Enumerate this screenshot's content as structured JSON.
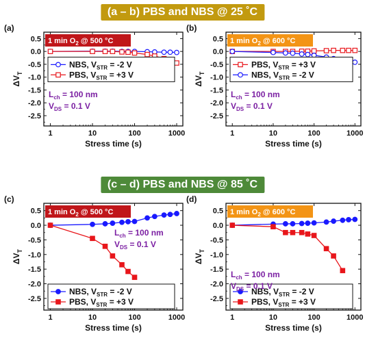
{
  "titles": {
    "top": "(a – b) PBS and NBS @ 25 ˚C",
    "bottom": "(c – d) PBS and NBS @ 85 ˚C"
  },
  "colors": {
    "nbs": "#1a1aff",
    "pbs": "#e8161b",
    "tag500": "#c0161a",
    "tag600": "#f39415",
    "annot": "#7b1fa2"
  },
  "chart_data": [
    {
      "panel": "(a)",
      "type": "line",
      "xscale": "log",
      "xlim": [
        0.7,
        1400
      ],
      "ylim": [
        -2.9,
        0.75
      ],
      "xlabel": "Stress time (s)",
      "ylabel": "ΔV_T",
      "xticks": [
        "1",
        "10",
        "100",
        "1000"
      ],
      "yticks": [
        "0.5",
        "0.0",
        "-0.5",
        "-1.0",
        "-1.5",
        "-2.0",
        "-2.5"
      ],
      "tag": {
        "main": "1 min O",
        "sub": "2",
        "rest": " @ 500 ",
        "unit": "°C",
        "color": "tag500"
      },
      "annot": {
        "l": "L",
        "lsub": "ch",
        "lval": " = 100 nm",
        "v": "V",
        "vsub": "DS",
        "vval": " = 0.1 V",
        "pos": "low"
      },
      "legend_pos": "mid",
      "marker": "hollow",
      "series": [
        {
          "name_main": "NBS, V",
          "name_sub": "STR",
          "name_val": " = -2 V",
          "color": "nbs",
          "shape": "circle",
          "x": [
            1,
            10,
            20,
            30,
            50,
            70,
            100,
            200,
            300,
            500,
            700,
            1000
          ],
          "values": [
            0,
            0.01,
            0.01,
            0.01,
            0,
            0,
            0,
            -0.01,
            -0.02,
            -0.03,
            -0.03,
            -0.04
          ]
        },
        {
          "name_main": "PBS, V",
          "name_sub": "STR",
          "name_val": " = +3 V",
          "color": "pbs",
          "shape": "square",
          "x": [
            1,
            10,
            20,
            30,
            50,
            70,
            100,
            200,
            300,
            500,
            700,
            1000
          ],
          "values": [
            0,
            0,
            0,
            0,
            -0.02,
            -0.03,
            -0.06,
            -0.12,
            -0.18,
            -0.28,
            -0.38,
            -0.45
          ]
        }
      ]
    },
    {
      "panel": "(b)",
      "type": "line",
      "xscale": "log",
      "xlim": [
        0.7,
        1400
      ],
      "ylim": [
        -2.9,
        0.75
      ],
      "xlabel": "Stress time (s)",
      "ylabel": "ΔV_T",
      "xticks": [
        "1",
        "10",
        "100",
        "1000"
      ],
      "yticks": [
        "0.5",
        "0.0",
        "-0.5",
        "-1.0",
        "-1.5",
        "-2.0",
        "-2.5"
      ],
      "tag": {
        "main": "1 min O",
        "sub": "2",
        "rest": " @ 600 ",
        "unit": "°C",
        "color": "tag600"
      },
      "annot": {
        "l": "L",
        "lsub": "ch",
        "lval": " = 100 nm",
        "v": "V",
        "vsub": "DS",
        "vval": " = 0.1 V",
        "pos": "low"
      },
      "legend_pos": "mid",
      "marker": "hollow",
      "series": [
        {
          "name_main": "PBS, V",
          "name_sub": "STR",
          "name_val": " = +3 V",
          "color": "pbs",
          "shape": "square",
          "x": [
            1,
            10,
            20,
            30,
            50,
            70,
            100,
            200,
            300,
            500,
            700,
            1000
          ],
          "values": [
            0,
            0,
            0,
            0,
            0.01,
            0.01,
            0.02,
            0.03,
            0.04,
            0.04,
            0.04,
            0.04
          ]
        },
        {
          "name_main": "NBS, V",
          "name_sub": "STR",
          "name_val": " = -2 V",
          "color": "nbs",
          "shape": "circle",
          "x": [
            1,
            10,
            20,
            30,
            50,
            70,
            100,
            200,
            300,
            500,
            700,
            1000
          ],
          "values": [
            0,
            -0.04,
            -0.06,
            -0.07,
            -0.1,
            -0.12,
            -0.15,
            -0.22,
            -0.28,
            -0.34,
            -0.38,
            -0.42
          ]
        }
      ]
    },
    {
      "panel": "(c)",
      "type": "line",
      "xscale": "log",
      "xlim": [
        0.7,
        1400
      ],
      "ylim": [
        -2.9,
        0.75
      ],
      "xlabel": "Stress time (s)",
      "ylabel": "ΔV_T",
      "xticks": [
        "1",
        "10",
        "100",
        "1000"
      ],
      "yticks": [
        "0.5",
        "0.0",
        "-0.5",
        "-1.0",
        "-1.5",
        "-2.0",
        "-2.5"
      ],
      "tag": {
        "main": "1 min O",
        "sub": "2",
        "rest": " @ 500 ",
        "unit": "°C",
        "color": "tag500"
      },
      "annot": {
        "l": "L",
        "lsub": "ch",
        "lval": " = 100 nm",
        "v": "V",
        "vsub": "DS",
        "vval": " = 0.1 V",
        "pos": "high"
      },
      "legend_pos": "bottom",
      "marker": "filled",
      "series": [
        {
          "name_main": "NBS, V",
          "name_sub": "STR",
          "name_val": " = -2 V",
          "color": "nbs",
          "shape": "circle",
          "x": [
            1,
            10,
            20,
            30,
            50,
            70,
            100,
            200,
            300,
            500,
            700,
            1000
          ],
          "values": [
            0,
            0.03,
            0.05,
            0.07,
            0.1,
            0.12,
            0.13,
            0.25,
            0.3,
            0.35,
            0.37,
            0.4
          ]
        },
        {
          "name_main": "PBS, V",
          "name_sub": "STR",
          "name_val": " = +3 V",
          "color": "pbs",
          "shape": "square",
          "x": [
            1,
            10,
            20,
            30,
            50,
            70,
            100
          ],
          "values": [
            0,
            -0.45,
            -0.72,
            -1.05,
            -1.35,
            -1.58,
            -1.78
          ]
        }
      ]
    },
    {
      "panel": "(d)",
      "type": "line",
      "xscale": "log",
      "xlim": [
        0.7,
        1400
      ],
      "ylim": [
        -2.9,
        0.75
      ],
      "xlabel": "Stress time (s)",
      "ylabel": "ΔV_T",
      "xticks": [
        "1",
        "10",
        "100",
        "1000"
      ],
      "yticks": [
        "0.5",
        "0.0",
        "-0.5",
        "-1.0",
        "-1.5",
        "-2.0",
        "-2.5"
      ],
      "tag": {
        "main": "1 min O",
        "sub": "2",
        "rest": " @ 600 ",
        "unit": "°C",
        "color": "tag600"
      },
      "annot": {
        "l": "L",
        "lsub": "ch",
        "lval": " = 100 nm",
        "v": "V",
        "vsub": "DS",
        "vval": " = 0.1 V",
        "pos": "low"
      },
      "legend_pos": "bottom",
      "marker": "filled",
      "series": [
        {
          "name_main": "NBS, V",
          "name_sub": "STR",
          "name_val": " = -2 V",
          "color": "nbs",
          "shape": "circle",
          "x": [
            1,
            10,
            20,
            30,
            50,
            70,
            100,
            200,
            300,
            500,
            700,
            1000
          ],
          "values": [
            0,
            0.04,
            0.05,
            0.05,
            0.06,
            0.07,
            0.08,
            0.11,
            0.14,
            0.17,
            0.19,
            0.2
          ]
        },
        {
          "name_main": "PBS, V",
          "name_sub": "STR",
          "name_val": " = +3 V",
          "color": "pbs",
          "shape": "square",
          "x": [
            1,
            10,
            20,
            30,
            50,
            70,
            100,
            200,
            300,
            500
          ],
          "values": [
            0,
            -0.05,
            -0.25,
            -0.25,
            -0.25,
            -0.3,
            -0.35,
            -0.8,
            -1.05,
            -1.55
          ]
        }
      ]
    }
  ]
}
